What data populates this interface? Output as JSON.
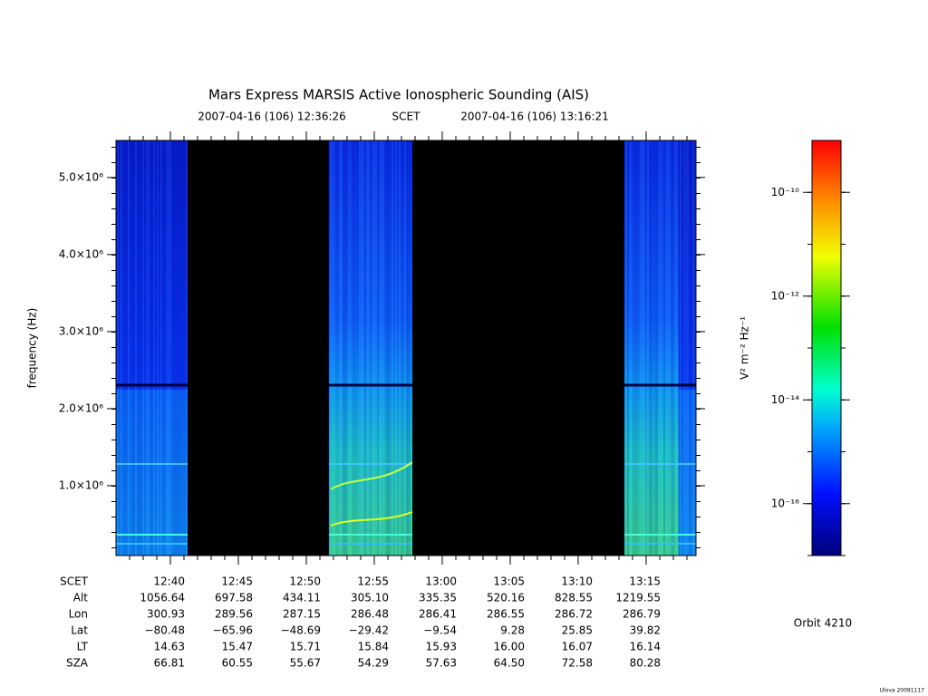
{
  "chart_data": {
    "type": "spectrogram",
    "title": "Mars Express MARSIS Active Ionospheric Sounding (AIS)",
    "subtitle_start": "2007-04-16 (106) 12:36:26",
    "subtitle_timescale": "SCET",
    "subtitle_end": "2007-04-16 (106) 13:16:21",
    "y_label": "frequency (Hz)",
    "ylim": [
      94000,
      5480000
    ],
    "yticks": [
      {
        "value": 1000000,
        "label": "1.0×10⁶"
      },
      {
        "value": 2000000,
        "label": "2.0×10⁶"
      },
      {
        "value": 3000000,
        "label": "3.0×10⁶"
      },
      {
        "value": 4000000,
        "label": "4.0×10⁶"
      },
      {
        "value": 5000000,
        "label": "5.0×10⁶"
      }
    ],
    "x_label": "SCET",
    "categories": [
      "12:40",
      "12:45",
      "12:50",
      "12:55",
      "13:00",
      "13:05",
      "13:10",
      "13:15"
    ],
    "ephemeris": [
      {
        "name": "Alt",
        "values": [
          1056.64,
          697.58,
          434.11,
          305.1,
          335.35,
          520.16,
          828.55,
          1219.55
        ],
        "value_labels": [
          "1056.64",
          "697.58",
          "434.11",
          "305.10",
          "335.35",
          "520.16",
          "828.55",
          "1219.55"
        ]
      },
      {
        "name": "Lon",
        "values": [
          300.93,
          289.56,
          287.15,
          286.48,
          286.41,
          286.55,
          286.72,
          286.79
        ],
        "value_labels": [
          "300.93",
          "289.56",
          "287.15",
          "286.48",
          "286.41",
          "286.55",
          "286.72",
          "286.79"
        ]
      },
      {
        "name": "Lat",
        "values": [
          -80.48,
          -65.96,
          -48.69,
          -29.42,
          -9.54,
          9.28,
          25.85,
          39.82
        ],
        "value_labels": [
          "−80.48",
          "−65.96",
          "−48.69",
          "−29.42",
          "−9.54",
          "9.28",
          "25.85",
          "39.82"
        ]
      },
      {
        "name": "LT",
        "values": [
          14.63,
          15.47,
          15.71,
          15.84,
          15.93,
          16.0,
          16.07,
          16.14
        ],
        "value_labels": [
          "14.63",
          "15.47",
          "15.71",
          "15.84",
          "15.93",
          "16.00",
          "16.07",
          "16.14"
        ]
      },
      {
        "name": "SZA",
        "values": [
          66.81,
          60.55,
          55.67,
          54.29,
          57.63,
          64.5,
          72.58,
          80.28
        ],
        "value_labels": [
          "66.81",
          "60.55",
          "55.67",
          "54.29",
          "57.63",
          "64.50",
          "72.58",
          "80.28"
        ]
      }
    ],
    "colorbar": {
      "label": "V² m⁻² Hz⁻¹",
      "log_scale": true,
      "clim": [
        1e-17,
        1e-09
      ],
      "ticks": [
        {
          "value": 1e-10,
          "label": "10⁻¹⁰"
        },
        {
          "value": 1e-12,
          "label": "10⁻¹²"
        },
        {
          "value": 1e-14,
          "label": "10⁻¹⁴"
        },
        {
          "value": 1e-16,
          "label": "10⁻¹⁶"
        }
      ]
    },
    "orbit": "Orbit 4210",
    "footer": "Ulova 20091117"
  }
}
